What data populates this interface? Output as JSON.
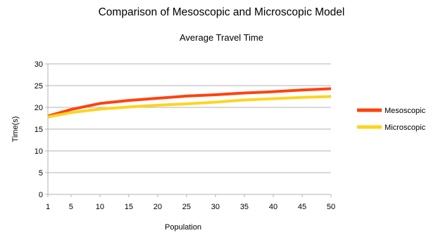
{
  "chart_data": {
    "type": "line",
    "title": "Comparison of Mesoscopic and Microscopic Model",
    "subtitle": "Average Travel Time",
    "xlabel": "Population",
    "ylabel": "Time(s)",
    "x": [
      1,
      5,
      10,
      15,
      20,
      25,
      30,
      35,
      40,
      45,
      50
    ],
    "xticks": [
      "1",
      "5",
      "10",
      "15",
      "20",
      "25",
      "30",
      "35",
      "40",
      "45",
      "50"
    ],
    "yticks": [
      "0",
      "5",
      "10",
      "15",
      "20",
      "25",
      "30"
    ],
    "ylim": [
      0,
      30
    ],
    "grid": "horizontal",
    "legend_position": "right",
    "series": [
      {
        "name": "Mesoscopic",
        "color": "#ff420e",
        "values": [
          18.0,
          19.5,
          20.9,
          21.6,
          22.1,
          22.6,
          22.9,
          23.3,
          23.6,
          24.0,
          24.3
        ]
      },
      {
        "name": "Microscopic",
        "color": "#ffd320",
        "values": [
          17.8,
          18.8,
          19.6,
          20.1,
          20.5,
          20.8,
          21.2,
          21.7,
          22.0,
          22.3,
          22.5
        ]
      }
    ]
  }
}
